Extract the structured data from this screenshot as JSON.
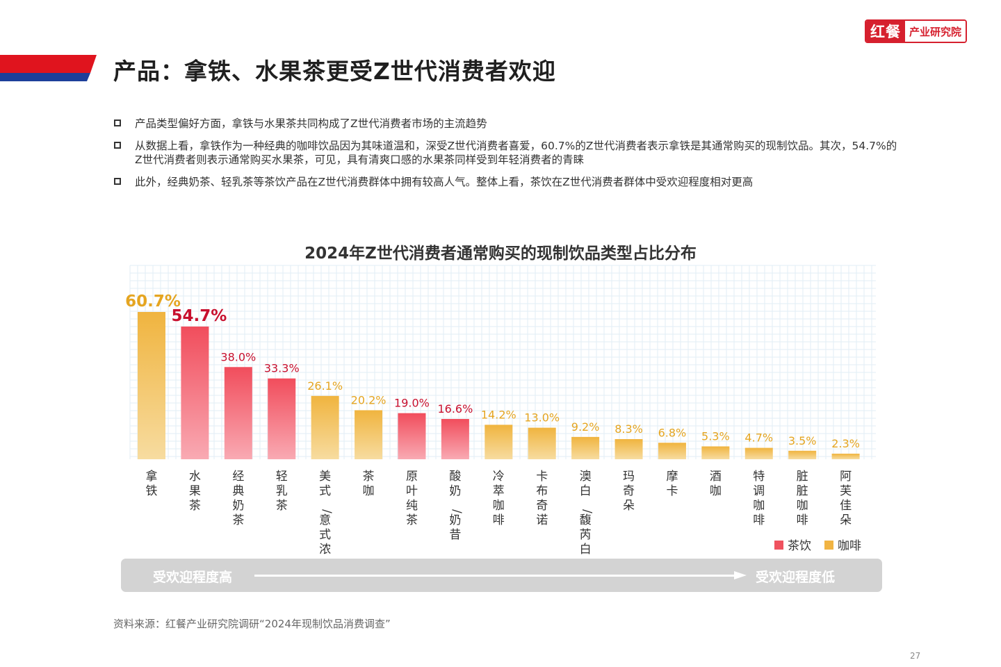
{
  "header": {
    "title": "产品：拿铁、水果茶更受Z世代消费者欢迎",
    "logo_left": "红餐",
    "logo_right": "产业研究院"
  },
  "bullets": [
    "产品类型偏好方面，拿铁与水果茶共同构成了Z世代消费者市场的主流趋势",
    "从数据上看，拿铁作为一种经典的咖啡饮品因为其味道温和，深受Z世代消费者喜爱，60.7%的Z世代消费者表示拿铁是其通常购买的现制饮品。其次，54.7%的Z世代消费者则表示通常购买水果茶，可见，具有清爽口感的水果茶同样受到年轻消费者的青睐",
    "此外，经典奶茶、轻乳茶等茶饮产品在Z世代消费群体中拥有较高人气。整体上看，茶饮在Z世代消费者群体中受欢迎程度相对更高"
  ],
  "chart_data": {
    "type": "bar",
    "title": "2024年Z世代消费者通常购买的现制饮品类型占比分布",
    "categories": [
      "拿铁",
      "水果茶",
      "经典奶茶",
      "轻乳茶",
      "美式/意式浓缩",
      "茶咖",
      "原叶纯茶",
      "酸奶/奶昔",
      "冷萃咖啡",
      "卡布奇诺",
      "澳白/馥芮白",
      "玛奇朵",
      "摩卡",
      "酒咖",
      "特调咖啡",
      "脏脏咖啡",
      "阿芙佳朵"
    ],
    "values": [
      60.7,
      54.7,
      38.0,
      33.3,
      26.1,
      20.2,
      19.0,
      16.6,
      14.2,
      13.0,
      9.2,
      8.3,
      6.8,
      5.3,
      4.7,
      3.5,
      2.3
    ],
    "value_labels": [
      "60.7%",
      "54.7%",
      "38.0%",
      "33.3%",
      "26.1%",
      "20.2%",
      "19.0%",
      "16.6%",
      "14.2%",
      "13.0%",
      "9.2%",
      "8.3%",
      "6.8%",
      "5.3%",
      "4.7%",
      "3.5%",
      "2.3%"
    ],
    "groups": [
      "coffee",
      "tea",
      "tea",
      "tea",
      "coffee",
      "coffee",
      "tea",
      "tea",
      "coffee",
      "coffee",
      "coffee",
      "coffee",
      "coffee",
      "coffee",
      "coffee",
      "coffee",
      "coffee"
    ],
    "legend": [
      {
        "key": "tea",
        "name": "茶饮",
        "color": "#f0525f"
      },
      {
        "key": "coffee",
        "name": "咖啡",
        "color": "#f1b443"
      }
    ],
    "label_colors": {
      "tea": "#c8102e",
      "coffee": "#e5a521"
    },
    "legend_position": "bottom-right",
    "grid": true,
    "ylim": [
      0,
      70
    ]
  },
  "popularity": {
    "high": "受欢迎程度高",
    "low": "受欢迎程度低"
  },
  "source": "资料来源：红餐产业研究院调研“2024年现制饮品消费调查”",
  "page_number": "27"
}
